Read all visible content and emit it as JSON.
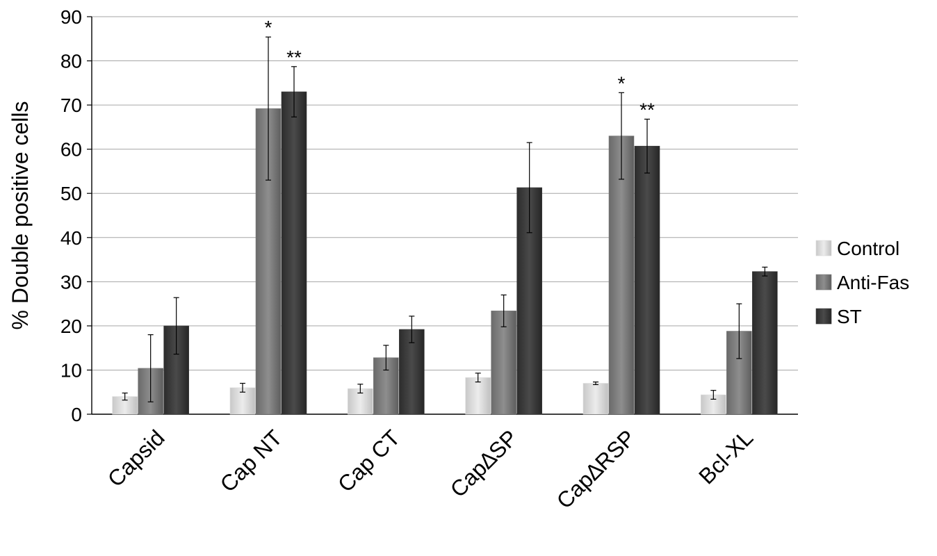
{
  "chart_data": {
    "type": "bar",
    "title": "",
    "xlabel": "",
    "ylabel": "% Double positive cells",
    "ylim": [
      0,
      90
    ],
    "yticks": [
      0,
      10,
      20,
      30,
      40,
      50,
      60,
      70,
      80,
      90
    ],
    "grid": true,
    "legend_position": "right",
    "categories": [
      "Capsid",
      "Cap NT",
      "Cap CT",
      "Cap∆SP",
      "Cap∆RSP",
      "Bcl-XL"
    ],
    "series": [
      {
        "name": "Control",
        "color": "#dcdcdc",
        "values": [
          4.0,
          6.0,
          5.8,
          8.3,
          7.0,
          4.4
        ],
        "errors": [
          0.8,
          1.0,
          1.0,
          1.0,
          0.3,
          1.0
        ],
        "annotations": [
          "",
          "",
          "",
          "",
          "",
          ""
        ]
      },
      {
        "name": "Anti-Fas",
        "color": "#7d7d7d",
        "values": [
          10.4,
          69.2,
          12.8,
          23.4,
          63.0,
          18.8
        ],
        "errors": [
          7.6,
          16.2,
          2.8,
          3.6,
          9.8,
          6.2
        ],
        "annotations": [
          "",
          "*",
          "",
          "",
          "*",
          ""
        ]
      },
      {
        "name": "ST",
        "color": "#3c3c3c",
        "values": [
          20.0,
          73.0,
          19.2,
          51.3,
          60.7,
          32.3
        ],
        "errors": [
          6.4,
          5.7,
          3.0,
          10.2,
          6.1,
          1.0
        ],
        "annotations": [
          "",
          "**",
          "",
          "",
          "**",
          ""
        ]
      }
    ]
  }
}
